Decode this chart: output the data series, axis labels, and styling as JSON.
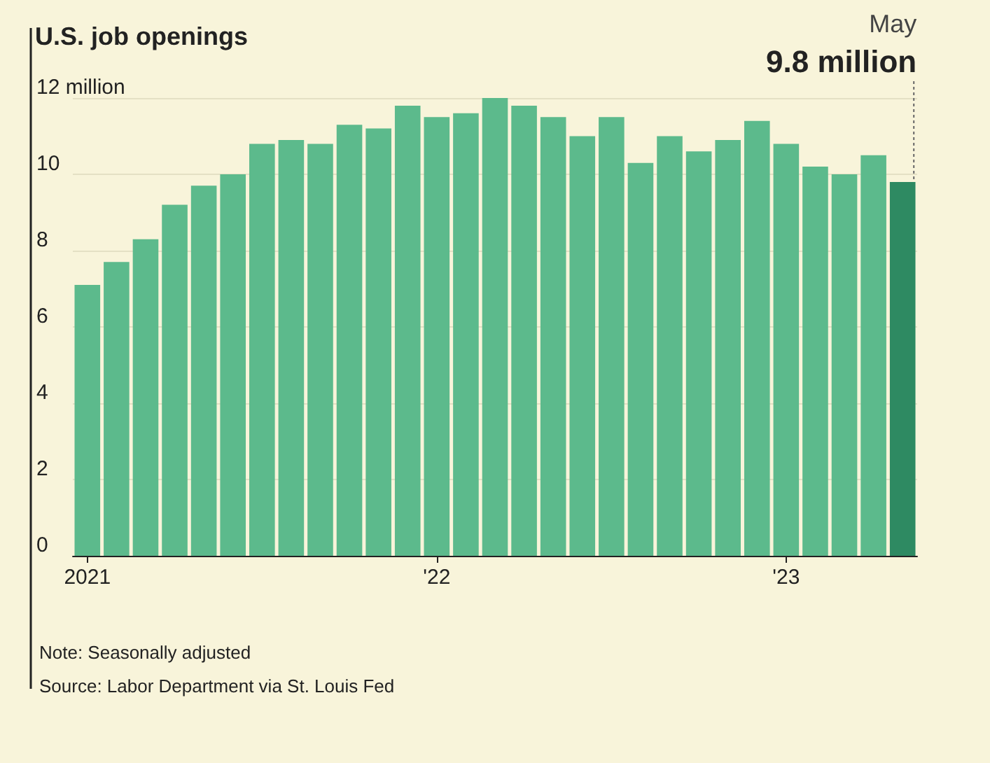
{
  "chart_data": {
    "type": "bar",
    "title": "U.S. job openings",
    "categories": [
      "2021",
      null,
      null,
      null,
      null,
      null,
      null,
      null,
      null,
      null,
      null,
      null,
      "'22",
      null,
      null,
      null,
      null,
      null,
      null,
      null,
      null,
      null,
      null,
      null,
      "'23",
      null,
      null,
      null,
      null
    ],
    "values": [
      7.1,
      7.7,
      8.3,
      9.2,
      9.7,
      10.0,
      10.8,
      10.9,
      10.8,
      11.3,
      11.2,
      11.8,
      11.5,
      11.6,
      12.0,
      11.8,
      11.5,
      11.0,
      11.5,
      10.3,
      11.0,
      10.6,
      10.9,
      11.4,
      10.8,
      10.2,
      10.0,
      10.5,
      9.8
    ],
    "colors": [
      "#5cba8c",
      "#5cba8c",
      "#5cba8c",
      "#5cba8c",
      "#5cba8c",
      "#5cba8c",
      "#5cba8c",
      "#5cba8c",
      "#5cba8c",
      "#5cba8c",
      "#5cba8c",
      "#5cba8c",
      "#5cba8c",
      "#5cba8c",
      "#5cba8c",
      "#5cba8c",
      "#5cba8c",
      "#5cba8c",
      "#5cba8c",
      "#5cba8c",
      "#5cba8c",
      "#5cba8c",
      "#5cba8c",
      "#5cba8c",
      "#5cba8c",
      "#5cba8c",
      "#5cba8c",
      "#5cba8c",
      "#2e8a62"
    ],
    "value_labels": [
      null,
      null,
      null,
      null,
      null,
      null,
      null,
      null,
      null,
      null,
      null,
      null,
      null,
      null,
      null,
      null,
      null,
      null,
      null,
      null,
      null,
      null,
      null,
      null,
      null,
      null,
      null,
      null,
      "9.8 million"
    ],
    "ylim": [
      0,
      12
    ],
    "yticks": [
      0,
      2,
      4,
      6,
      8,
      10,
      {
        "value": 12,
        "label": "12 million"
      }
    ],
    "grid": "y",
    "annotations": [
      "May",
      "Note: Seasonally adjusted",
      "Source: Labor Department via St. Louis Fed"
    ]
  }
}
